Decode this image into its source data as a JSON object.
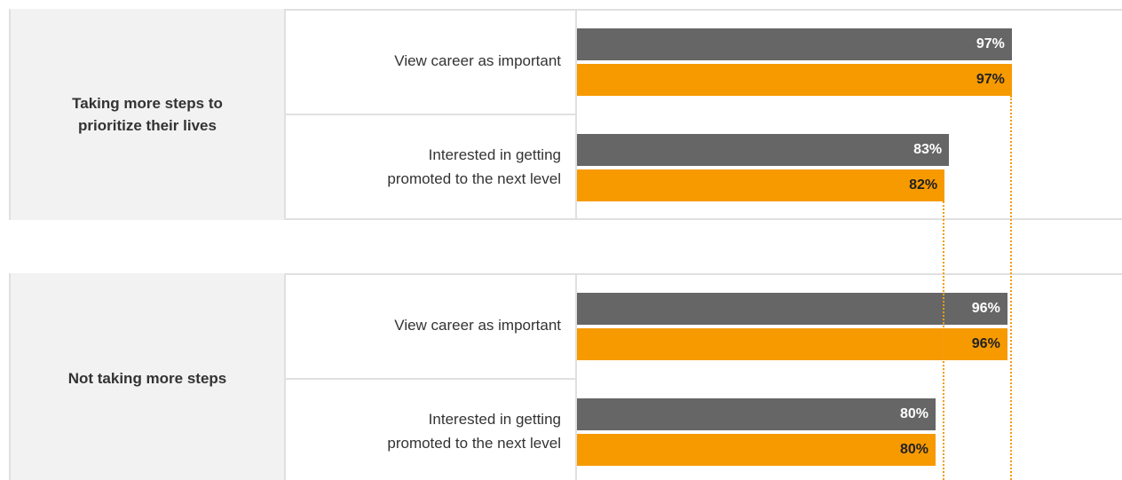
{
  "chart_data": [
    {
      "type": "bar",
      "title": "Taking more steps to prioritize their lives",
      "categories": [
        "View career as important",
        "Interested in getting promoted to the next level"
      ],
      "xlim": [
        0,
        100
      ],
      "series": [
        {
          "color": "#666666",
          "values": [
            97,
            83
          ],
          "value_labels": [
            "97%",
            "83%"
          ]
        },
        {
          "color": "#f79a00",
          "values": [
            97,
            82
          ],
          "value_labels": [
            "97%",
            "82%"
          ]
        }
      ]
    },
    {
      "type": "bar",
      "title": "Not taking more steps",
      "categories": [
        "View career as important",
        "Interested in getting promoted to the next level"
      ],
      "xlim": [
        0,
        100
      ],
      "series": [
        {
          "color": "#666666",
          "values": [
            96,
            80
          ],
          "value_labels": [
            "96%",
            "80%"
          ]
        },
        {
          "color": "#f79a00",
          "values": [
            96,
            80
          ],
          "value_labels": [
            "96%",
            "80%"
          ]
        }
      ]
    }
  ]
}
